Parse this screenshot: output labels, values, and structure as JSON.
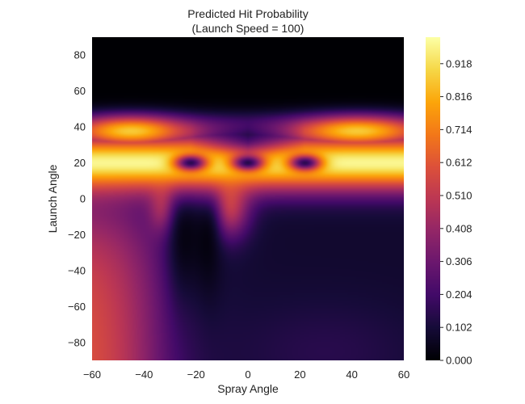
{
  "chart_data": {
    "type": "heatmap",
    "title_line1": "Predicted Hit Probability",
    "title_line2": "(Launch Speed = 100)",
    "xlabel": "Spray Angle",
    "ylabel": "Launch Angle",
    "xlim": [
      -60,
      60
    ],
    "ylim": [
      -90,
      90
    ],
    "xticks": [
      "−60",
      "−40",
      "−20",
      "0",
      "20",
      "40",
      "60"
    ],
    "yticks": [
      "80",
      "60",
      "40",
      "20",
      "0",
      "−20",
      "−40",
      "−60",
      "−80"
    ],
    "colormap": "inferno",
    "colorbar_range": [
      0,
      1
    ],
    "colorbar_ticks": [
      "0.918",
      "0.816",
      "0.714",
      "0.612",
      "0.510",
      "0.408",
      "0.306",
      "0.204",
      "0.102",
      "0.000"
    ],
    "grid": false,
    "description_features": {
      "bright_band_launch_angle_range": [
        10,
        45
      ],
      "dark_holes_in_band": [
        [
          -22,
          20
        ],
        [
          0,
          20
        ],
        [
          22,
          20
        ]
      ],
      "dark_region_top": "launch angle above ~50",
      "dark_vertical_lobes": [
        [
          -25,
          -30
        ],
        [
          -15,
          -10
        ]
      ],
      "moderate_bottom_left": "spray angle -60 to -30, launch angle -90 to -20"
    }
  }
}
